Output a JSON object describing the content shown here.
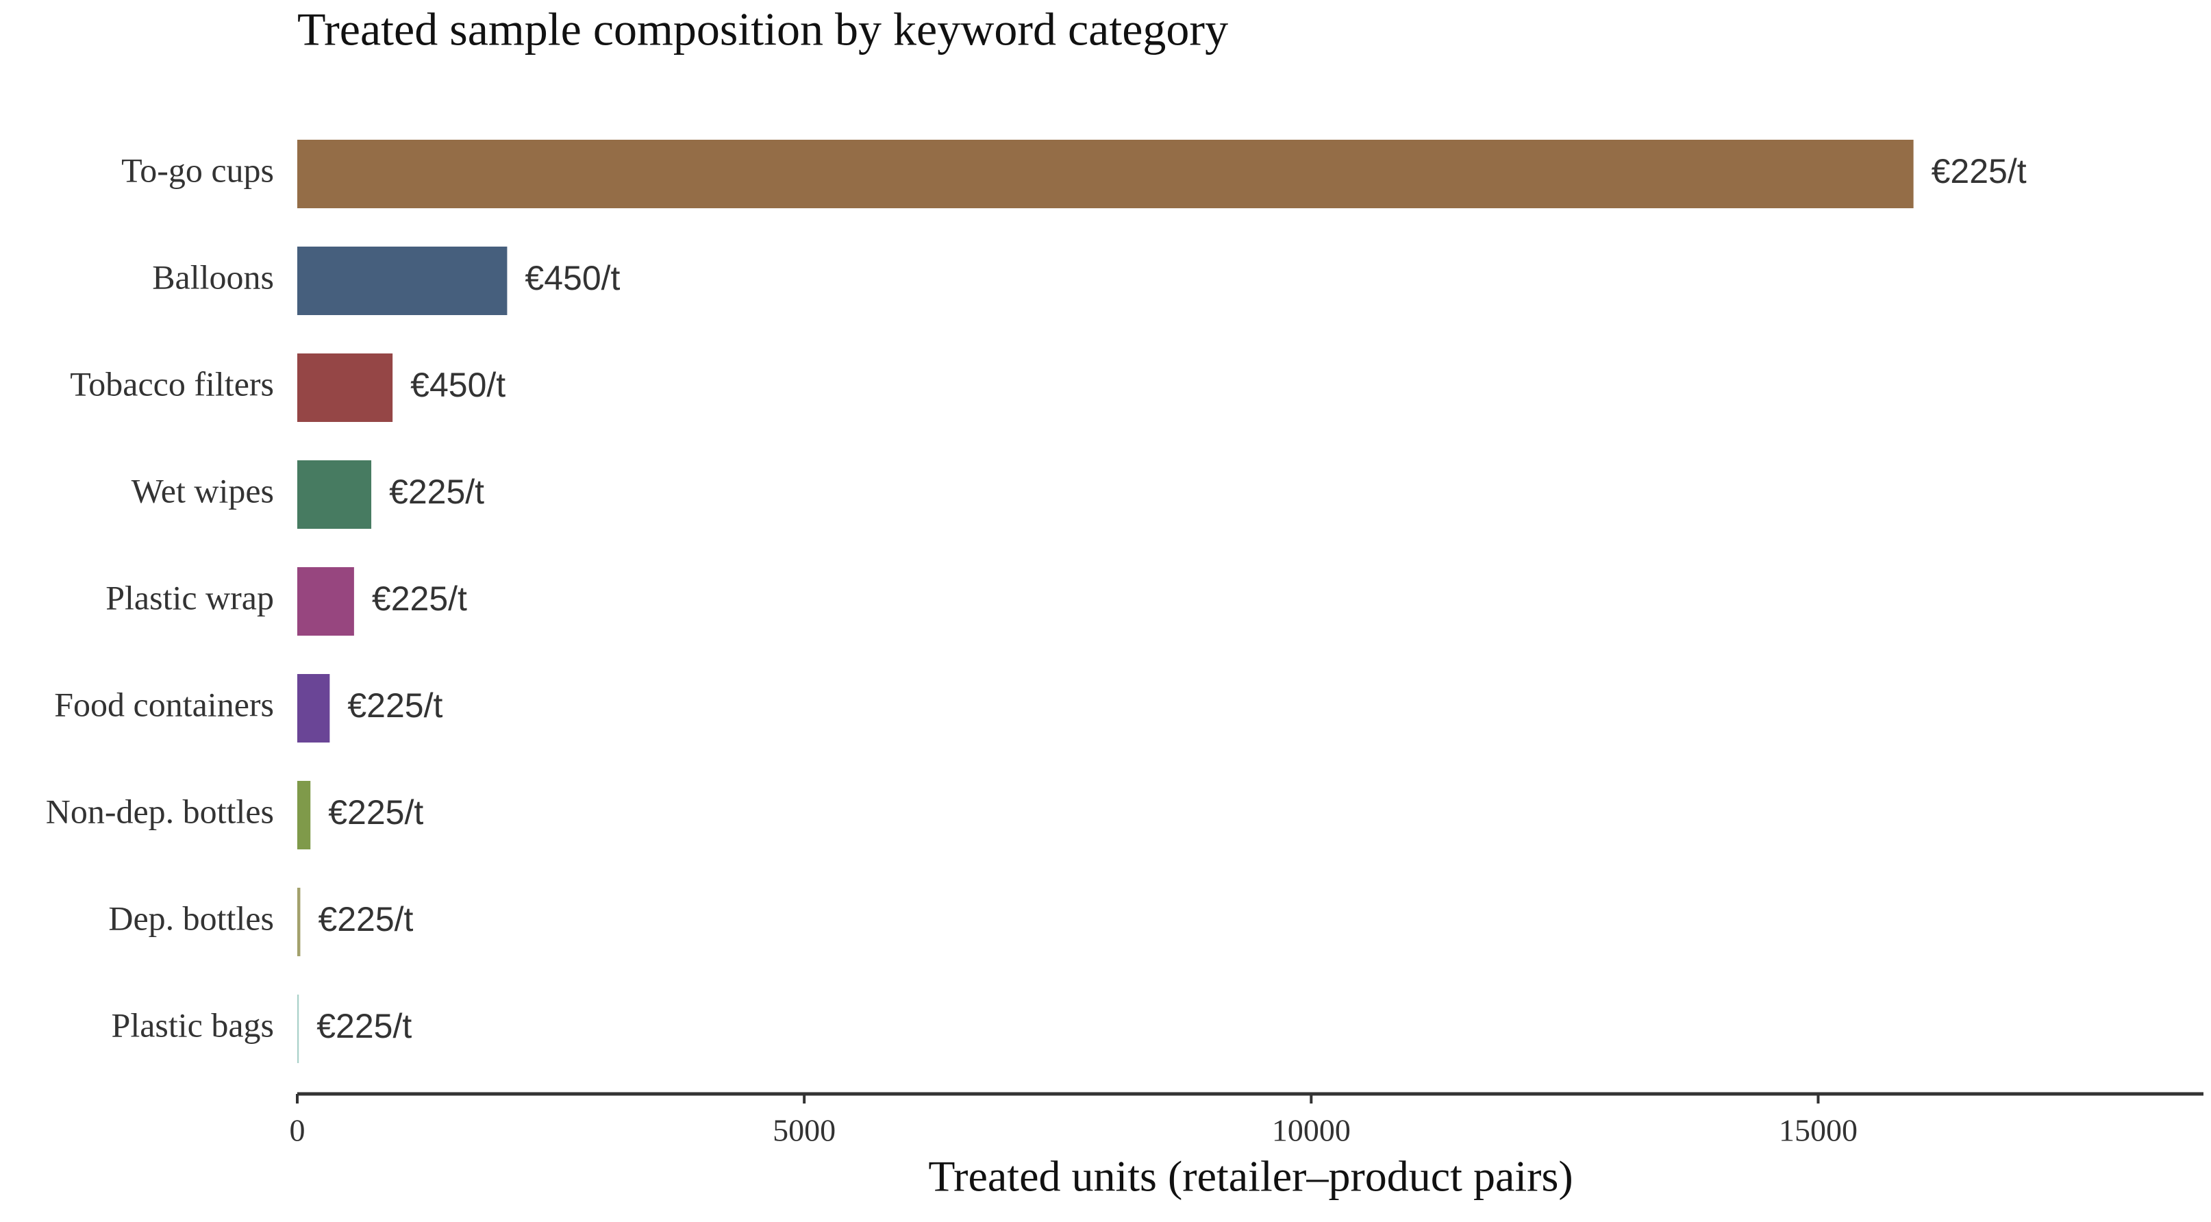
{
  "chart_data": {
    "type": "bar",
    "orientation": "horizontal",
    "title": "Treated sample composition by keyword category",
    "x_label": "Treated units (retailer–product pairs)",
    "categories": [
      "To-go cups",
      "Balloons",
      "Tobacco filters",
      "Wet wipes",
      "Plastic wrap",
      "Food containers",
      "Non-dep. bottles",
      "Dep. bottles",
      "Plastic bags"
    ],
    "values": [
      15940,
      2070,
      940,
      730,
      560,
      320,
      130,
      30,
      15
    ],
    "colors": [
      "#946d47",
      "#465f7d",
      "#954646",
      "#477b61",
      "#97467f",
      "#6a4596",
      "#7f9a4a",
      "#a3a16c",
      "#a9d1c9"
    ],
    "bar_labels": [
      "€225/t",
      "€450/t",
      "€450/t",
      "€225/t",
      "€225/t",
      "€225/t",
      "€225/t",
      "€225/t",
      "€225/t"
    ],
    "xlim": [
      0,
      18800
    ],
    "xticks": [
      0,
      5000,
      10000,
      15000
    ],
    "grid": false
  }
}
